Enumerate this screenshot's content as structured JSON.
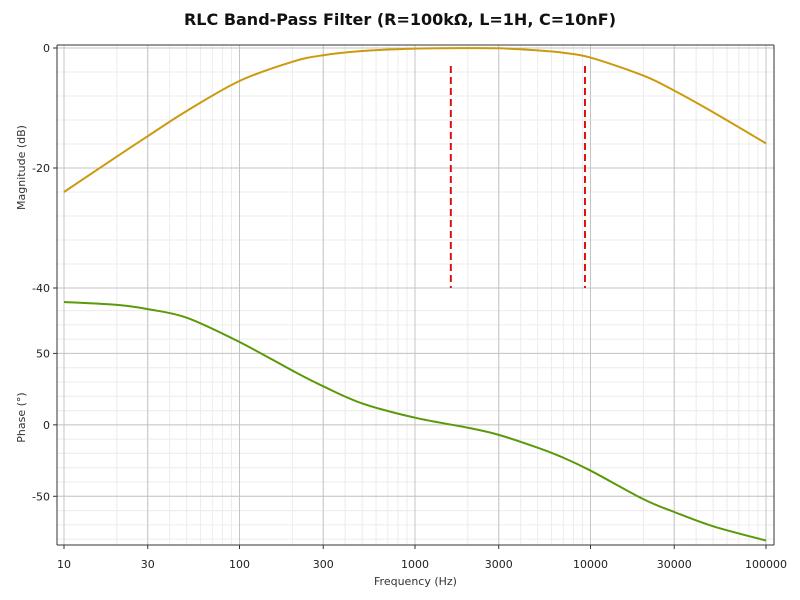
{
  "chart_data": {
    "type": "line",
    "title": "RLC Band-Pass Filter (R=100kΩ, L=1H, C=10nF)",
    "xlabel": "Frequency (Hz)",
    "x_scale": "log",
    "xlim": [
      10,
      100000
    ],
    "x_ticks": [
      10,
      30,
      100,
      300,
      1000,
      3000,
      10000,
      30000,
      100000
    ],
    "x_tick_labels": [
      "10",
      "30",
      "100",
      "300",
      "1000",
      "3000",
      "10000",
      "30000",
      "100000"
    ],
    "grid": true,
    "panels": [
      {
        "ylabel": "Magnitude (dB)",
        "ylim": [
          -40,
          0
        ],
        "y_ticks": [
          0,
          -20,
          -40
        ],
        "y_tick_labels": [
          "0",
          "-20",
          "-40"
        ],
        "series": [
          {
            "color": "#cc9a0e",
            "x": [
              10,
              20,
              30,
              50,
              100,
              200,
              300,
              500,
              1000,
              2000,
              3000,
              5000,
              7000,
              10000,
              20000,
              30000,
              50000,
              100000
            ],
            "y": [
              -24.0,
              -18.1,
              -14.7,
              -10.5,
              -5.5,
              -2.3,
              -1.2,
              -0.5,
              -0.1,
              -0.02,
              -0.05,
              -0.4,
              -0.8,
              -1.6,
              -4.6,
              -7.1,
              -10.7,
              -15.9
            ]
          }
        ],
        "markers": [
          {
            "x": 1600,
            "y_range": [
              -3,
              -40
            ],
            "color": "#dd1111",
            "style": "dashed"
          },
          {
            "x": 9300,
            "y_range": [
              -3,
              -40
            ],
            "color": "#dd1111",
            "style": "dashed"
          }
        ]
      },
      {
        "ylabel": "Phase (°)",
        "ylim": [
          -82,
          86
        ],
        "y_ticks": [
          50,
          0,
          -50
        ],
        "y_tick_labels": [
          "50",
          "0",
          "-50"
        ],
        "series": [
          {
            "color": "#5a9a0a",
            "x": [
              10,
              20,
              30,
              50,
              100,
              200,
              300,
              500,
              1000,
              2000,
              3000,
              5000,
              7000,
              10000,
              20000,
              30000,
              50000,
              100000
            ],
            "y": [
              86,
              84,
              81,
              75,
              58,
              38,
              27,
              15,
              5,
              -2,
              -7,
              -16,
              -23,
              -32,
              -52,
              -61,
              -71,
              -81
            ]
          }
        ]
      }
    ]
  }
}
